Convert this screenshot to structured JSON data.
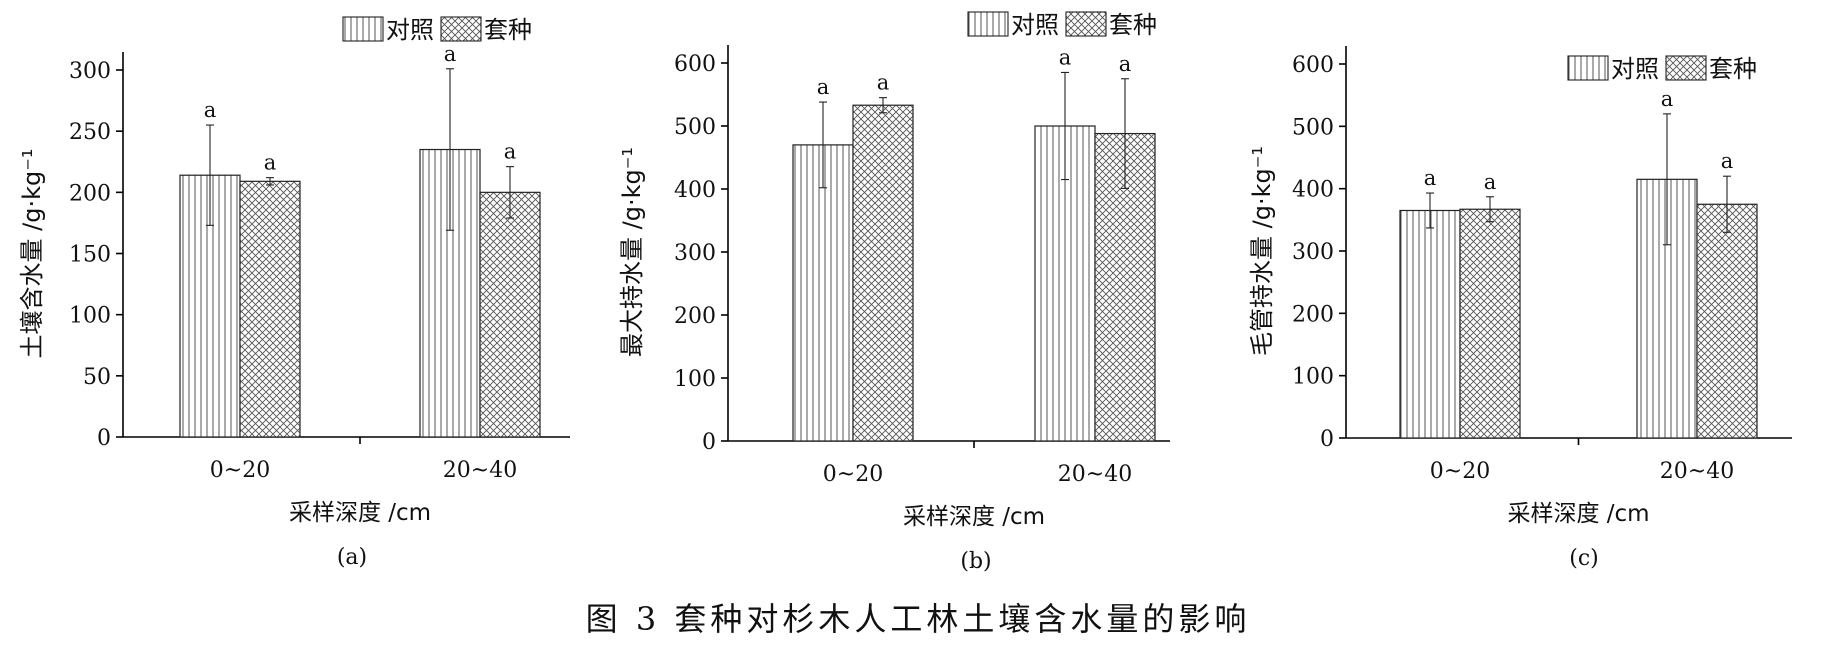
{
  "figure": {
    "caption": "图 3   套种对杉木人工林土壤含水量的影响"
  },
  "legend": {
    "control_label": "对照",
    "intercrop_label": "套种"
  },
  "chart_data": [
    {
      "panel_label": "(a)",
      "type": "bar",
      "ylabel": "土壤含水量 /g·kg⁻¹",
      "xlabel": "采样深度 /cm",
      "categories": [
        "0~20",
        "20~40"
      ],
      "ylim": [
        0,
        300
      ],
      "yticks": [
        0,
        50,
        100,
        150,
        200,
        250,
        300
      ],
      "series": [
        {
          "name": "对照",
          "pattern": "vertical-lines",
          "values": [
            214,
            235
          ],
          "errors": [
            41,
            66
          ],
          "significance": [
            "a",
            "a"
          ]
        },
        {
          "name": "套种",
          "pattern": "crosshatch",
          "values": [
            209,
            200
          ],
          "errors": [
            3,
            21
          ],
          "significance": [
            "a",
            "a"
          ]
        }
      ]
    },
    {
      "panel_label": "(b)",
      "type": "bar",
      "ylabel": "最大持水量 /g·kg⁻¹",
      "xlabel": "采样深度 /cm",
      "categories": [
        "0~20",
        "20~40"
      ],
      "ylim": [
        0,
        600
      ],
      "yticks": [
        0,
        100,
        200,
        300,
        400,
        500,
        600
      ],
      "series": [
        {
          "name": "对照",
          "pattern": "vertical-lines",
          "values": [
            470,
            500
          ],
          "errors": [
            68,
            85
          ],
          "significance": [
            "a",
            "a"
          ]
        },
        {
          "name": "套种",
          "pattern": "crosshatch",
          "values": [
            533,
            488
          ],
          "errors": [
            12,
            87
          ],
          "significance": [
            "a",
            "a"
          ]
        }
      ]
    },
    {
      "panel_label": "(c)",
      "type": "bar",
      "ylabel": "毛管持水量 /g·kg⁻¹",
      "xlabel": "采样深度 /cm",
      "categories": [
        "0~20",
        "20~40"
      ],
      "ylim": [
        0,
        600
      ],
      "yticks": [
        0,
        100,
        200,
        300,
        400,
        500,
        600
      ],
      "series": [
        {
          "name": "对照",
          "pattern": "vertical-lines",
          "values": [
            365,
            415
          ],
          "errors": [
            28,
            105
          ],
          "significance": [
            "a",
            "a"
          ]
        },
        {
          "name": "套种",
          "pattern": "crosshatch",
          "values": [
            367,
            375
          ],
          "errors": [
            20,
            45
          ],
          "significance": [
            "a",
            "a"
          ]
        }
      ]
    }
  ]
}
